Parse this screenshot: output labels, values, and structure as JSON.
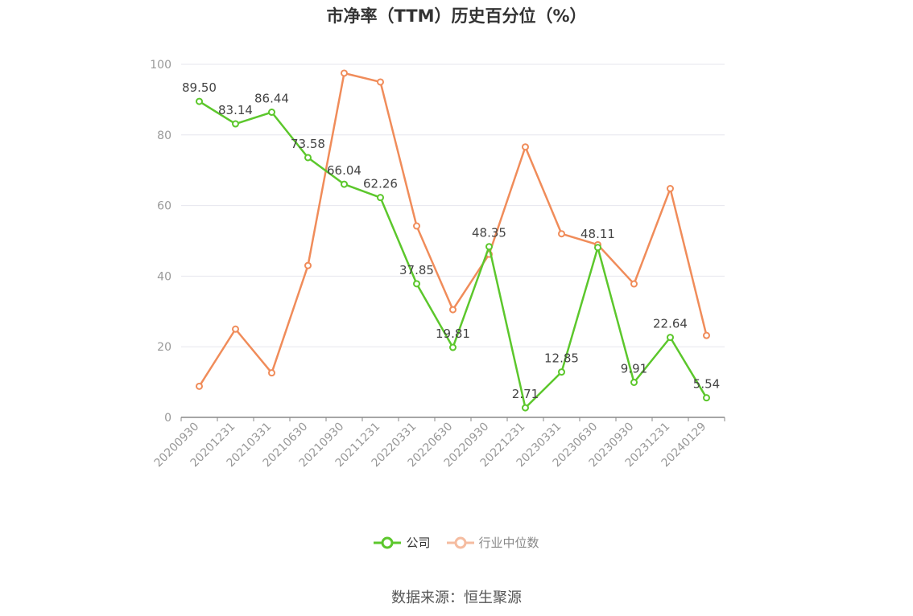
{
  "title": "市净率（TTM）历史百分位（%）",
  "source": "数据来源：恒生聚源",
  "legend": {
    "company": "公司",
    "industry": "行业中位数"
  },
  "colors": {
    "company": "#5cc72c",
    "industry": "#f08c5a",
    "grid": "#e6e6ee",
    "axis": "#999999"
  },
  "chart_data": {
    "type": "line",
    "categories": [
      "20200930",
      "20201231",
      "20210331",
      "20210630",
      "20210930",
      "20211231",
      "20220331",
      "20220630",
      "20220930",
      "20221231",
      "20230331",
      "20230630",
      "20230930",
      "20231231",
      "20240129"
    ],
    "series": [
      {
        "name": "公司",
        "values": [
          89.5,
          83.14,
          86.44,
          73.58,
          66.04,
          62.26,
          37.85,
          19.81,
          48.35,
          2.71,
          12.85,
          48.11,
          9.91,
          22.64,
          5.54
        ],
        "labels": [
          "89.50",
          "83.14",
          "86.44",
          "73.58",
          "66.04",
          "62.26",
          "37.85",
          "19.81",
          "48.35",
          "2.71",
          "12.85",
          "48.11",
          "9.91",
          "22.64",
          "5.54"
        ]
      },
      {
        "name": "行业中位数",
        "values": [
          8.8,
          25.0,
          12.6,
          43.0,
          97.5,
          95.0,
          54.2,
          30.5,
          46.2,
          76.6,
          52.0,
          48.9,
          37.8,
          64.8,
          23.2
        ]
      }
    ],
    "yticks": [
      "0",
      "20",
      "40",
      "60",
      "80",
      "100"
    ],
    "ylim": [
      0,
      100
    ],
    "grid": true,
    "legend_position": "bottom-center"
  }
}
